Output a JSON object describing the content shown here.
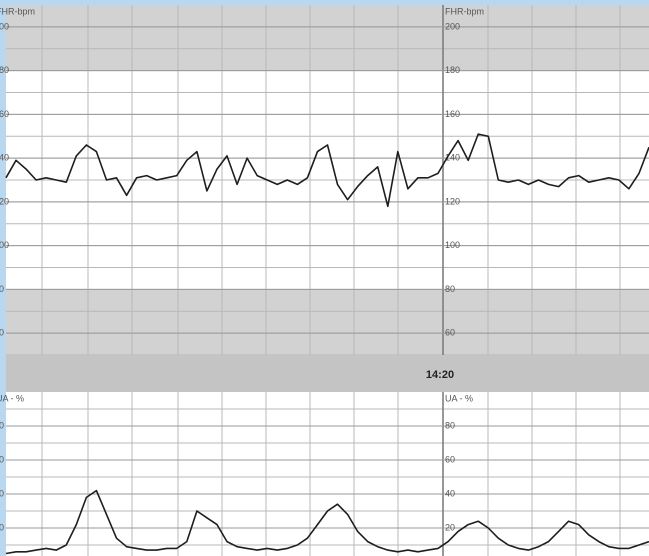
{
  "chart_data": [
    {
      "type": "line",
      "ylabel": "FHR-bpm",
      "ylim": [
        50,
        210
      ],
      "yticks": [
        60,
        80,
        100,
        120,
        140,
        160,
        180,
        200
      ],
      "shade_below": 80,
      "shade_above": 180,
      "series": [
        {
          "name": "FHR",
          "color": "#1e1e1e",
          "values": [
            131,
            139,
            135,
            130,
            131,
            130,
            129,
            141,
            146,
            143,
            130,
            131,
            123,
            131,
            132,
            130,
            131,
            132,
            139,
            143,
            125,
            135,
            141,
            128,
            140,
            132,
            130,
            128,
            130,
            128,
            131,
            143,
            146,
            128,
            121,
            127,
            132,
            136,
            118,
            143,
            126,
            131,
            131,
            133,
            141,
            148,
            139,
            151,
            150,
            130,
            129,
            130,
            128,
            130,
            128,
            127,
            131,
            132,
            129,
            130,
            131,
            130,
            126,
            133,
            145
          ]
        }
      ]
    },
    {
      "type": "line",
      "ylabel": "UA - %",
      "ylim": [
        0,
        100
      ],
      "yticks": [
        20,
        40,
        60,
        80
      ],
      "series": [
        {
          "name": "UA",
          "color": "#1e1e1e",
          "values": [
            5,
            6,
            6,
            7,
            8,
            7,
            10,
            22,
            38,
            42,
            28,
            14,
            9,
            8,
            7,
            7,
            8,
            8,
            12,
            30,
            26,
            22,
            12,
            9,
            8,
            7,
            8,
            7,
            8,
            10,
            14,
            22,
            30,
            34,
            28,
            18,
            12,
            9,
            7,
            6,
            7,
            6,
            7,
            8,
            12,
            18,
            22,
            24,
            20,
            14,
            10,
            8,
            7,
            9,
            12,
            18,
            24,
            22,
            16,
            12,
            9,
            8,
            8,
            10,
            12
          ]
        }
      ]
    }
  ],
  "time_marker": "14:20"
}
